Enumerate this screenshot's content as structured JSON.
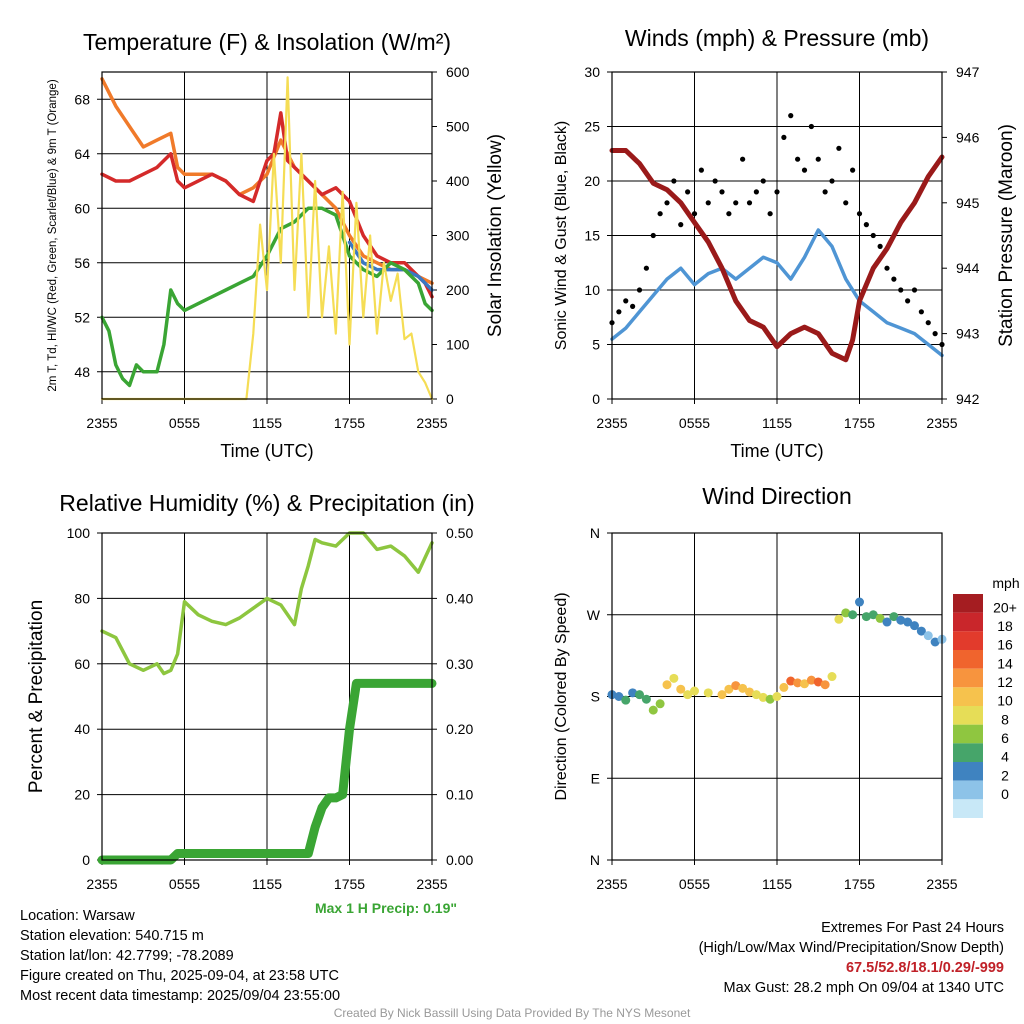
{
  "colors": {
    "temperature": "#d42a2a",
    "dewpoint": "#3aa534",
    "heat_index": "#3a78c2",
    "temp_9m": "#f07a2a",
    "insolation": "#f5dd55",
    "wind": "#4f95d4",
    "gust": "#000000",
    "pressure": "#9a1a1a",
    "rh": "#8dc63f",
    "precip": "#3aa534",
    "max_precip_text": "#3aa534",
    "extremes_text": "#c02128"
  },
  "chart_data": [
    {
      "id": "temperature",
      "type": "line",
      "title": "Temperature (F) & Insolation (W/m²)",
      "xlabel": "Time (UTC)",
      "ylabel_left": "2m T, Td, HI/WC (Red, Green, Scarlet/Blue) & 9m T (Orange)",
      "ylabel_right": "Solar Insolation (Yellow)",
      "x_ticks": [
        "2355",
        "0555",
        "1155",
        "1755",
        "2355"
      ],
      "y_ticks_left": [
        "48",
        "52",
        "56",
        "60",
        "64",
        "68"
      ],
      "y_ticks_right": [
        "0",
        "100",
        "200",
        "300",
        "400",
        "500",
        "600"
      ],
      "ylim_left": [
        46,
        70
      ],
      "ylim_right": [
        0,
        600
      ],
      "grid": true,
      "series": [
        {
          "color_key": "temp_9m",
          "axis": "left",
          "x": [
            0,
            1,
            2,
            3,
            4,
            5,
            5.5,
            6,
            8,
            9,
            10,
            11,
            12,
            13,
            14,
            15,
            16,
            17,
            18,
            19,
            20,
            21,
            22,
            23,
            24
          ],
          "y": [
            69.5,
            67.5,
            66,
            64.5,
            65,
            65.5,
            63,
            62.5,
            62.5,
            62,
            61,
            61.5,
            62.5,
            65,
            63,
            62,
            61,
            60,
            58,
            56.5,
            56,
            55.5,
            55.5,
            55,
            54.5
          ]
        },
        {
          "color_key": "temperature",
          "axis": "left",
          "x": [
            0,
            1,
            2,
            3,
            4,
            5,
            5.5,
            6,
            8,
            9,
            10,
            11,
            11.5,
            12,
            12.5,
            13,
            13.5,
            14,
            15,
            16,
            17,
            18,
            19,
            20,
            21,
            22,
            23,
            23.5,
            24
          ],
          "y": [
            62.5,
            62,
            62,
            62.5,
            63,
            64,
            62,
            61.5,
            62.5,
            62,
            61,
            60.5,
            62,
            63.5,
            64,
            67,
            63.5,
            63,
            62,
            61,
            61.5,
            60.5,
            58,
            56.5,
            56,
            56,
            55,
            54.5,
            53.5
          ]
        },
        {
          "color_key": "heat_index",
          "axis": "left",
          "x": [
            18,
            19,
            20,
            21,
            22,
            23,
            24
          ],
          "y": [
            57.5,
            56,
            55.5,
            55.5,
            55.5,
            55,
            54
          ]
        },
        {
          "color_key": "dewpoint",
          "axis": "left",
          "x": [
            0,
            0.5,
            1,
            1.5,
            2,
            2.5,
            3,
            4,
            4.5,
            5,
            5.5,
            6,
            7,
            8,
            9,
            10,
            11,
            12,
            12.5,
            13,
            14,
            15,
            16,
            17,
            18,
            19,
            20,
            21,
            22,
            23,
            23.5,
            24
          ],
          "y": [
            52,
            51,
            48.5,
            47.5,
            47,
            48.5,
            48,
            48,
            50,
            54,
            53,
            52.5,
            53,
            53.5,
            54,
            54.5,
            55,
            56.5,
            57.5,
            58.5,
            59,
            60,
            60,
            59.5,
            56.5,
            55.5,
            55,
            56,
            55.5,
            54.5,
            53,
            52.5
          ]
        },
        {
          "color_key": "insolation",
          "axis": "right",
          "x": [
            0,
            10.5,
            11,
            11.5,
            12,
            12.5,
            13,
            13.5,
            14,
            14.5,
            15,
            15.5,
            16,
            16.5,
            17,
            17.5,
            18,
            18.5,
            19,
            19.5,
            20,
            20.5,
            21,
            21.5,
            22,
            22.5,
            23,
            23.5,
            24
          ],
          "y": [
            0,
            0,
            120,
            320,
            200,
            450,
            250,
            590,
            200,
            450,
            150,
            400,
            150,
            280,
            120,
            380,
            100,
            360,
            150,
            300,
            120,
            250,
            180,
            230,
            110,
            120,
            50,
            30,
            0
          ]
        }
      ]
    },
    {
      "id": "winds",
      "type": "line",
      "title": "Winds (mph) & Pressure (mb)",
      "xlabel": "Time (UTC)",
      "ylabel_left": "Sonic Wind & Gust (Blue, Black)",
      "ylabel_right": "Station Pressure (Maroon)",
      "x_ticks": [
        "2355",
        "0555",
        "1155",
        "1755",
        "2355"
      ],
      "y_ticks_left": [
        "0",
        "5",
        "10",
        "15",
        "20",
        "25",
        "30"
      ],
      "y_ticks_right": [
        "942",
        "943",
        "944",
        "945",
        "946",
        "947"
      ],
      "ylim_left": [
        0,
        30
      ],
      "ylim_right": [
        942,
        947
      ],
      "grid": true,
      "series": [
        {
          "color_key": "wind",
          "axis": "left",
          "x": [
            0,
            1,
            2,
            3,
            4,
            5,
            6,
            7,
            8,
            9,
            10,
            11,
            12,
            13,
            14,
            15,
            16,
            17,
            18,
            19,
            20,
            21,
            22,
            23,
            24
          ],
          "y": [
            5.5,
            6.5,
            8,
            9.5,
            11,
            12,
            10.5,
            11.5,
            12,
            11,
            12,
            13,
            12.5,
            11,
            13,
            15.5,
            14,
            11,
            9,
            8,
            7,
            6.5,
            6,
            5,
            4
          ]
        },
        {
          "color_key": "gust",
          "axis": "left",
          "style": "points",
          "x": [
            0,
            0.5,
            1,
            1.5,
            2,
            2.5,
            3,
            3.5,
            4,
            4.5,
            5,
            5.5,
            6,
            6.5,
            7,
            7.5,
            8,
            8.5,
            9,
            9.5,
            10,
            10.5,
            11,
            11.5,
            12,
            12.5,
            13,
            13.5,
            14,
            14.5,
            15,
            15.5,
            16,
            16.5,
            17,
            17.5,
            18,
            18.5,
            19,
            19.5,
            20,
            20.5,
            21,
            21.5,
            22,
            22.5,
            23,
            23.5,
            24
          ],
          "y": [
            7,
            8,
            9,
            8.5,
            10,
            12,
            15,
            17,
            18,
            20,
            16,
            19,
            17,
            21,
            18,
            20,
            19,
            17,
            18,
            22,
            18,
            19,
            20,
            17,
            19,
            24,
            26,
            22,
            21,
            25,
            22,
            19,
            20,
            23,
            18,
            21,
            17,
            16,
            15,
            14,
            12,
            11,
            10,
            9,
            10,
            8,
            7,
            6,
            5
          ]
        },
        {
          "color_key": "pressure",
          "axis": "right",
          "x": [
            0,
            1,
            2,
            3,
            4,
            5,
            6,
            7,
            8,
            9,
            10,
            11,
            12,
            13,
            14,
            15,
            16,
            17,
            17.5,
            18,
            19,
            20,
            21,
            22,
            23,
            24
          ],
          "y": [
            945.8,
            945.8,
            945.6,
            945.3,
            945.2,
            945.0,
            944.7,
            944.4,
            944.0,
            943.5,
            943.2,
            943.1,
            942.8,
            943.0,
            943.1,
            943.0,
            942.7,
            942.6,
            942.9,
            943.5,
            944.0,
            944.3,
            944.7,
            945.0,
            945.4,
            945.7
          ]
        }
      ]
    },
    {
      "id": "humidity",
      "type": "line",
      "title": "Relative Humidity (%) & Precipitation (in)",
      "xlabel": "",
      "ylabel_left": "Percent & Precipitation",
      "x_ticks": [
        "2355",
        "0555",
        "1155",
        "1755",
        "2355"
      ],
      "y_ticks_left": [
        "0",
        "20",
        "40",
        "60",
        "80",
        "100"
      ],
      "y_ticks_right": [
        "0.00",
        "0.10",
        "0.20",
        "0.30",
        "0.40",
        "0.50"
      ],
      "ylim_left": [
        0,
        100
      ],
      "ylim_right": [
        0,
        0.5
      ],
      "grid": true,
      "series": [
        {
          "color_key": "rh",
          "axis": "left",
          "x": [
            0,
            1,
            2,
            3,
            4,
            4.5,
            5,
            5.5,
            6,
            7,
            8,
            9,
            10,
            11,
            12,
            13,
            14,
            14.5,
            15,
            15.5,
            16,
            17,
            18,
            19,
            20,
            21,
            22,
            23,
            24
          ],
          "y": [
            70,
            68,
            60,
            58,
            60,
            57,
            58,
            63,
            79,
            75,
            73,
            72,
            74,
            77,
            80,
            78,
            72,
            83,
            90,
            98,
            97,
            96,
            100,
            100,
            95,
            96,
            93,
            88,
            97
          ]
        },
        {
          "color_key": "precip",
          "axis": "left",
          "style": "thick",
          "x": [
            0,
            5,
            5.5,
            15,
            15.5,
            16,
            16.5,
            17,
            17.5,
            18,
            18.5,
            24
          ],
          "y": [
            0,
            0,
            2,
            2,
            10,
            16,
            19,
            19,
            20,
            40,
            54,
            54
          ]
        }
      ]
    },
    {
      "id": "wind_direction",
      "type": "scatter",
      "title": "Wind Direction",
      "ylabel_left": "Direction (Colored By Speed)",
      "x_ticks": [
        "2355",
        "0555",
        "1155",
        "1755",
        "2355"
      ],
      "y_ticks_left": [
        "N",
        "E",
        "S",
        "W",
        "N"
      ],
      "grid": true,
      "points": [
        {
          "x": 0,
          "y": 182,
          "s": 4
        },
        {
          "x": 0.5,
          "y": 180,
          "s": 5
        },
        {
          "x": 1,
          "y": 176,
          "s": 6
        },
        {
          "x": 1.5,
          "y": 184,
          "s": 5
        },
        {
          "x": 2,
          "y": 182,
          "s": 7
        },
        {
          "x": 2.5,
          "y": 177,
          "s": 6
        },
        {
          "x": 3,
          "y": 165,
          "s": 8
        },
        {
          "x": 3.5,
          "y": 172,
          "s": 9
        },
        {
          "x": 4,
          "y": 193,
          "s": 12
        },
        {
          "x": 4.5,
          "y": 200,
          "s": 11
        },
        {
          "x": 5,
          "y": 188,
          "s": 12
        },
        {
          "x": 5.5,
          "y": 182,
          "s": 11
        },
        {
          "x": 6,
          "y": 186,
          "s": 10
        },
        {
          "x": 7,
          "y": 184,
          "s": 11
        },
        {
          "x": 8,
          "y": 182,
          "s": 12
        },
        {
          "x": 8.5,
          "y": 188,
          "s": 13
        },
        {
          "x": 9,
          "y": 192,
          "s": 14
        },
        {
          "x": 9.5,
          "y": 189,
          "s": 13
        },
        {
          "x": 10,
          "y": 185,
          "s": 12
        },
        {
          "x": 10.5,
          "y": 182,
          "s": 11
        },
        {
          "x": 11,
          "y": 179,
          "s": 10
        },
        {
          "x": 11.5,
          "y": 177,
          "s": 9
        },
        {
          "x": 12,
          "y": 180,
          "s": 10
        },
        {
          "x": 12.5,
          "y": 190,
          "s": 13
        },
        {
          "x": 13,
          "y": 197,
          "s": 16
        },
        {
          "x": 13.5,
          "y": 195,
          "s": 14
        },
        {
          "x": 14,
          "y": 194,
          "s": 12
        },
        {
          "x": 14.5,
          "y": 198,
          "s": 15
        },
        {
          "x": 15,
          "y": 196,
          "s": 16
        },
        {
          "x": 15.5,
          "y": 193,
          "s": 14
        },
        {
          "x": 16,
          "y": 202,
          "s": 10
        },
        {
          "x": 16.5,
          "y": 265,
          "s": 10
        },
        {
          "x": 17,
          "y": 272,
          "s": 8
        },
        {
          "x": 17.5,
          "y": 270,
          "s": 6
        },
        {
          "x": 18,
          "y": 284,
          "s": 4
        },
        {
          "x": 18.5,
          "y": 268,
          "s": 7
        },
        {
          "x": 19,
          "y": 270,
          "s": 6
        },
        {
          "x": 19.5,
          "y": 266,
          "s": 8
        },
        {
          "x": 20,
          "y": 262,
          "s": 5
        },
        {
          "x": 20.5,
          "y": 268,
          "s": 6
        },
        {
          "x": 21,
          "y": 264,
          "s": 4
        },
        {
          "x": 21.5,
          "y": 262,
          "s": 5
        },
        {
          "x": 22,
          "y": 258,
          "s": 4
        },
        {
          "x": 22.5,
          "y": 252,
          "s": 4
        },
        {
          "x": 23,
          "y": 247,
          "s": 3
        },
        {
          "x": 23.5,
          "y": 240,
          "s": 4
        },
        {
          "x": 24,
          "y": 243,
          "s": 3
        }
      ],
      "colorbar": {
        "title": "mph",
        "labels": [
          "20+",
          "18",
          "16",
          "14",
          "12",
          "10",
          "8",
          "6",
          "4",
          "2",
          "0"
        ],
        "colors": [
          "#a51d21",
          "#c9262b",
          "#e23b2c",
          "#f0642d",
          "#f7943e",
          "#f6c24d",
          "#e6dd57",
          "#8fc640",
          "#46a56a",
          "#3f83c0",
          "#8dc3e8",
          "#c8e8f7"
        ]
      }
    }
  ],
  "max_precip": "Max 1 H Precip: 0.19\"",
  "info_left": {
    "location": "Location: Warsaw",
    "elevation": "Station elevation: 540.715 m",
    "latlon": "Station lat/lon: 42.7799; -78.2089",
    "created": "Figure created on Thu, 2025-09-04, at 23:58 UTC",
    "recent": "Most recent data timestamp: 2025/09/04 23:55:00"
  },
  "info_right": {
    "line1": "Extremes For Past 24 Hours",
    "line2": "(High/Low/Max Wind/Precipitation/Snow Depth)",
    "values": "67.5/52.8/18.1/0.29/-999",
    "gust": "Max Gust: 28.2 mph On 09/04 at 1340 UTC"
  },
  "credit": "Created By Nick Bassill Using Data Provided By The NYS Mesonet"
}
